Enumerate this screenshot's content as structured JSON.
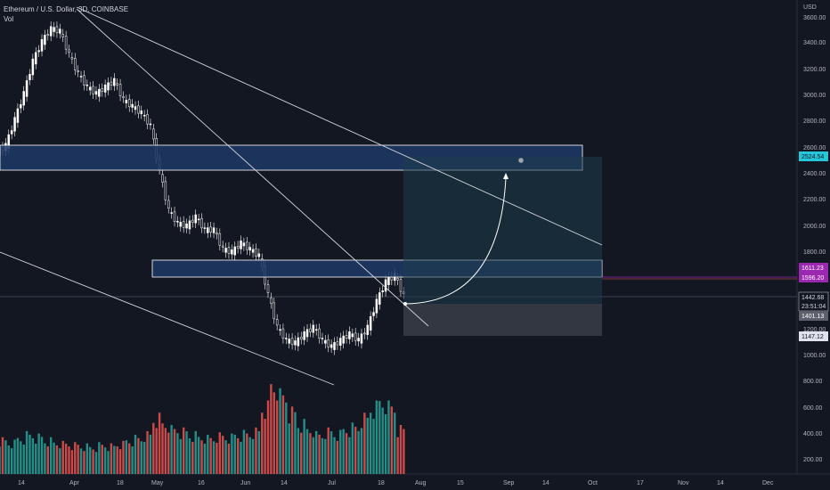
{
  "header": {
    "symbol_line": "Ethereum / U.S. Dollar, 3D, COINBASE",
    "volume_label": "Vol"
  },
  "price_axis": {
    "unit": "USD",
    "ticks": [
      "3600.00",
      "3400.00",
      "3200.00",
      "3000.00",
      "2800.00",
      "2600.00",
      "2400.00",
      "2200.00",
      "2000.00",
      "1800.00",
      "1200.00",
      "1000.00",
      "800.00",
      "600.00",
      "400.00",
      "200.00"
    ]
  },
  "price_tags": {
    "target": "2524.54",
    "level_upper": "1611.23",
    "level_lower": "1596.20",
    "current_price": "1442.68",
    "countdown": "23:51:04",
    "stop_level": "1401.13",
    "lower_level": "1147.12"
  },
  "time_axis": {
    "labels": [
      "14",
      "Apr",
      "18",
      "May",
      "16",
      "Jun",
      "14",
      "Jul",
      "18",
      "Aug",
      "15",
      "Sep",
      "14",
      "Oct",
      "17",
      "Nov",
      "14",
      "Dec"
    ]
  },
  "colors": {
    "background": "#131722",
    "up_candle": "#ffffff",
    "down_candle": "#ffffff",
    "vol_up": "#26a69a",
    "vol_down": "#ef5350",
    "zone_fill": "#1e3a66",
    "target_tag": "#26c6da",
    "level_tag": "#9c27b0"
  },
  "chart_data": {
    "type": "candlestick",
    "ylim": [
      200,
      3700
    ],
    "x": [
      "Mar 14",
      "Mar 17",
      "Mar 20",
      "Mar 23",
      "Mar 26",
      "Mar 29",
      "Apr 1",
      "Apr 4",
      "Apr 7",
      "Apr 10",
      "Apr 13",
      "Apr 16",
      "Apr 19",
      "Apr 22",
      "Apr 25",
      "Apr 28",
      "May 1",
      "May 4",
      "May 7",
      "May 10",
      "May 13",
      "May 16",
      "May 19",
      "May 22",
      "May 25",
      "May 28",
      "May 31",
      "Jun 3",
      "Jun 6",
      "Jun 9",
      "Jun 12",
      "Jun 15",
      "Jun 18",
      "Jun 21",
      "Jun 24",
      "Jun 27",
      "Jun 30",
      "Jul 3",
      "Jul 6",
      "Jul 9",
      "Jul 12",
      "Jul 15",
      "Jul 18",
      "Jul 21",
      "Jul 24"
    ],
    "close": [
      2600,
      2800,
      3000,
      3250,
      3400,
      3500,
      3480,
      3300,
      3150,
      3050,
      3000,
      3050,
      3100,
      2950,
      2900,
      2850,
      2750,
      2400,
      2100,
      2000,
      1980,
      2050,
      1950,
      1950,
      1800,
      1780,
      1850,
      1800,
      1750,
      1450,
      1200,
      1100,
      1080,
      1150,
      1200,
      1100,
      1050,
      1100,
      1150,
      1100,
      1200,
      1400,
      1550,
      1600,
      1442
    ],
    "volume": [
      300,
      280,
      320,
      350,
      330,
      300,
      280,
      270,
      260,
      250,
      240,
      260,
      250,
      270,
      300,
      320,
      350,
      500,
      450,
      400,
      380,
      350,
      330,
      320,
      340,
      330,
      350,
      360,
      380,
      600,
      800,
      700,
      550,
      450,
      400,
      350,
      380,
      360,
      400,
      420,
      500,
      600,
      650,
      600,
      400
    ],
    "zones": [
      {
        "low": 2425,
        "high": 2615
      },
      {
        "low": 1595,
        "high": 1725
      }
    ],
    "position": {
      "entry": 1401.13,
      "target": 2524.54,
      "stop": 1147.12
    }
  }
}
